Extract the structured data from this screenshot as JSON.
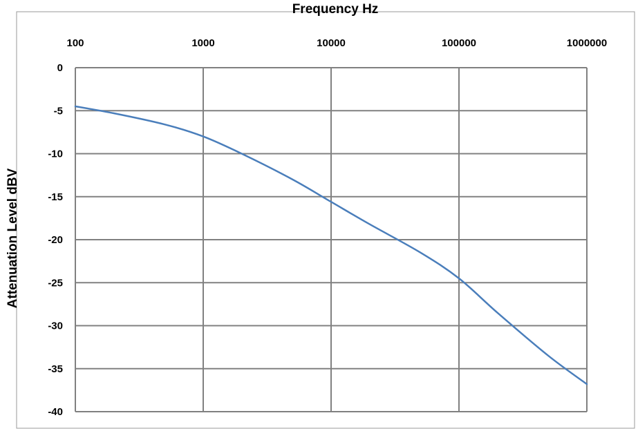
{
  "chart_data": {
    "type": "line",
    "xlabel": "Frequency Hz",
    "ylabel": "Attenuation Level dBV",
    "x_scale": "log",
    "xlim": [
      100,
      1000000
    ],
    "ylim": [
      -40,
      0
    ],
    "x_axis_position": "top",
    "grid": true,
    "xticks": [
      "100",
      "1000",
      "10000",
      "100000",
      "1000000"
    ],
    "yticks": [
      "0",
      "-5",
      "-10",
      "-15",
      "-20",
      "-25",
      "-30",
      "-35",
      "-40"
    ],
    "series": [
      {
        "color": "#4a7ebb",
        "x": [
          100,
          200,
          500,
          1000,
          2000,
          5000,
          10000,
          20000,
          50000,
          100000,
          200000,
          500000,
          1000000
        ],
        "y": [
          -4.5,
          -5.3,
          -6.6,
          -8.0,
          -10.0,
          -13.0,
          -15.6,
          -18.2,
          -21.5,
          -24.5,
          -28.5,
          -33.5,
          -36.8
        ]
      }
    ]
  }
}
